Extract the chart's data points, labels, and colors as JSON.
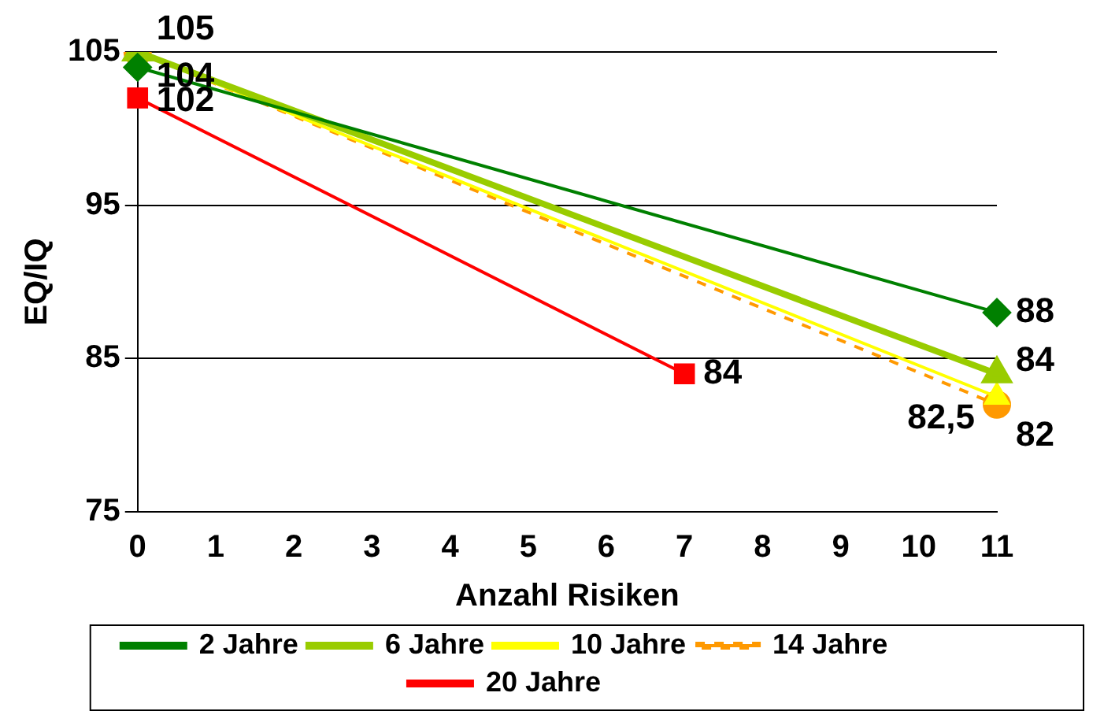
{
  "chart_data": {
    "type": "line",
    "xlabel": "Anzahl Risiken",
    "ylabel": "EQ/IQ",
    "categories": [
      "0",
      "1",
      "2",
      "3",
      "4",
      "5",
      "6",
      "7",
      "8",
      "9",
      "10",
      "11"
    ],
    "ylim": [
      75,
      105
    ],
    "yticks": [
      75,
      85,
      95,
      105
    ],
    "grid": "y",
    "legend": "bottom",
    "series": [
      {
        "name": "2 Jahre",
        "color": "#008000",
        "marker": "diamond",
        "line_style": "solid",
        "values": [
          104,
          null,
          null,
          null,
          null,
          null,
          null,
          null,
          null,
          null,
          null,
          88
        ],
        "value_labels": [
          "104",
          null,
          null,
          null,
          null,
          null,
          null,
          null,
          null,
          null,
          null,
          "88"
        ]
      },
      {
        "name": "6 Jahre",
        "color": "#99cc00",
        "marker": "triangle",
        "line_style": "solid",
        "values": [
          105,
          null,
          null,
          null,
          null,
          null,
          null,
          null,
          null,
          null,
          null,
          84
        ],
        "value_labels": [
          null,
          null,
          null,
          null,
          null,
          null,
          null,
          null,
          null,
          null,
          null,
          "84"
        ]
      },
      {
        "name": "10 Jahre",
        "color": "#ffff00",
        "marker": "triangle",
        "line_style": "solid",
        "values": [
          105,
          null,
          null,
          null,
          null,
          null,
          null,
          null,
          null,
          null,
          null,
          82.5
        ],
        "value_labels": [
          null,
          null,
          null,
          null,
          null,
          null,
          null,
          null,
          null,
          null,
          null,
          "82,5"
        ]
      },
      {
        "name": "14 Jahre",
        "color": "#ff9900",
        "marker": "circle",
        "line_style": "dashed",
        "values": [
          105,
          null,
          null,
          null,
          null,
          null,
          null,
          null,
          null,
          null,
          null,
          82
        ],
        "value_labels": [
          "105",
          null,
          null,
          null,
          null,
          null,
          null,
          null,
          null,
          null,
          null,
          "82"
        ]
      },
      {
        "name": "20 Jahre",
        "color": "#ff0000",
        "marker": "square",
        "line_style": "solid",
        "values": [
          102,
          null,
          null,
          null,
          null,
          null,
          null,
          84,
          null,
          null,
          null,
          null
        ],
        "value_labels": [
          "102",
          null,
          null,
          null,
          null,
          null,
          null,
          "84",
          null,
          null,
          null,
          null
        ]
      }
    ]
  }
}
